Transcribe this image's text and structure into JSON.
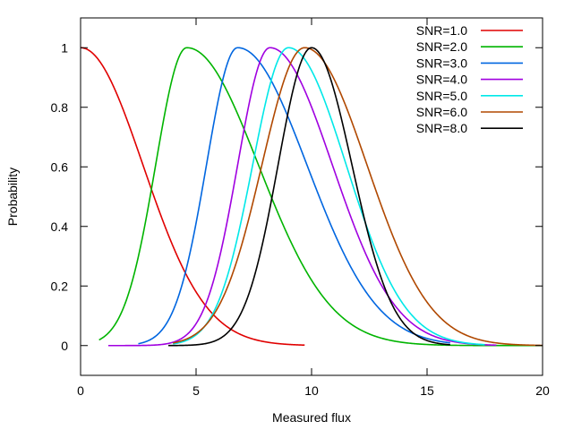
{
  "chart_data": {
    "type": "line",
    "title": "",
    "xlabel": "Measured flux",
    "ylabel": "Probability",
    "xlim": [
      0,
      20
    ],
    "ylim": [
      -0.1,
      1.1
    ],
    "xticks": [
      0,
      5,
      10,
      15,
      20
    ],
    "yticks": [
      0,
      0.2,
      0.4,
      0.6,
      0.8,
      1
    ],
    "xtick_labels": [
      "0",
      "5",
      "10",
      "15",
      "20"
    ],
    "ytick_labels": [
      "0",
      "0.2",
      "0.4",
      "0.6",
      "0.8",
      "1"
    ],
    "grid": false,
    "legend_position": "top-right",
    "series": [
      {
        "name": "SNR=1.0",
        "color": "#e00000",
        "model": "halfgauss",
        "peak": 0.0,
        "sigma": 2.7,
        "xmin": 0.0,
        "xmax": 9.7
      },
      {
        "name": "SNR=2.0",
        "color": "#00b400",
        "model": "skew",
        "peak": 4.6,
        "sigma_left": 1.35,
        "sigma_right": 3.1,
        "xmin": 0.8,
        "xmax": 20.0
      },
      {
        "name": "SNR=3.0",
        "color": "#0066e0",
        "model": "skew",
        "peak": 6.8,
        "sigma_left": 1.35,
        "sigma_right": 3.0,
        "xmin": 2.5,
        "xmax": 16.0
      },
      {
        "name": "SNR=4.0",
        "color": "#a000e0",
        "model": "skew",
        "peak": 8.2,
        "sigma_left": 1.4,
        "sigma_right": 2.7,
        "xmin": 1.2,
        "xmax": 18.0
      },
      {
        "name": "SNR=5.0",
        "color": "#00e8e8",
        "model": "skew",
        "peak": 9.0,
        "sigma_left": 1.55,
        "sigma_right": 2.5,
        "xmin": 4.0,
        "xmax": 17.5
      },
      {
        "name": "SNR=6.0",
        "color": "#b04800",
        "model": "skew",
        "peak": 9.7,
        "sigma_left": 1.85,
        "sigma_right": 2.7,
        "xmin": 4.0,
        "xmax": 20.0
      },
      {
        "name": "SNR=8.0",
        "color": "#000000",
        "model": "skew",
        "peak": 10.0,
        "sigma_left": 1.45,
        "sigma_right": 1.75,
        "xmin": 3.8,
        "xmax": 16.0
      }
    ]
  }
}
